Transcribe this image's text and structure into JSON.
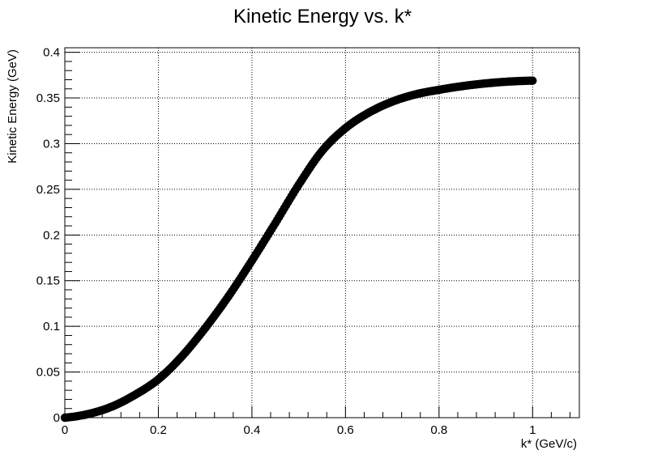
{
  "chart_data": {
    "type": "scatter",
    "title": "Kinetic Energy vs. k*",
    "xlabel": "k* (GeV/c)",
    "ylabel": "Kinetic Energy (GeV)",
    "xlim": [
      0,
      1.1
    ],
    "ylim": [
      0,
      0.405
    ],
    "x_ticks": [
      0,
      0.2,
      0.4,
      0.6,
      0.8,
      1
    ],
    "x_tick_labels": [
      "0",
      "0.2",
      "0.4",
      "0.6",
      "0.8",
      "1"
    ],
    "y_ticks": [
      0,
      0.05,
      0.1,
      0.15,
      0.2,
      0.25,
      0.3,
      0.35,
      0.4
    ],
    "y_tick_labels": [
      "0",
      "0.05",
      "0.1",
      "0.15",
      "0.2",
      "0.25",
      "0.3",
      "0.35",
      "0.4"
    ],
    "grid": true,
    "grid_style": "dotted",
    "marker_color": "#000000",
    "series": [
      {
        "x": [
          0,
          0.05,
          0.1,
          0.15,
          0.2,
          0.25,
          0.3,
          0.35,
          0.4,
          0.45,
          0.5,
          0.55,
          0.6,
          0.65,
          0.7,
          0.75,
          0.8,
          0.85,
          0.9,
          0.95,
          1.0
        ],
        "values": [
          0,
          0.004,
          0.012,
          0.025,
          0.042,
          0.067,
          0.098,
          0.133,
          0.172,
          0.213,
          0.255,
          0.292,
          0.317,
          0.334,
          0.346,
          0.354,
          0.359,
          0.363,
          0.366,
          0.368,
          0.369
        ]
      }
    ]
  }
}
